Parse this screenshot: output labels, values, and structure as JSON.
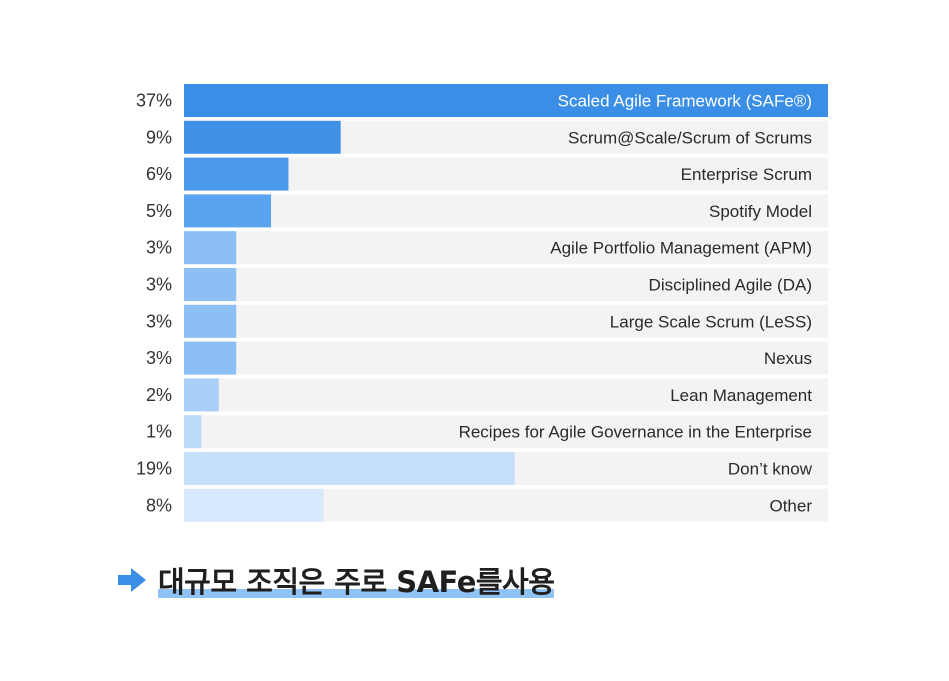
{
  "chart_data": {
    "type": "bar",
    "orientation": "horizontal",
    "categories": [
      "Scaled Agile Framework (SAFe®)",
      "Scrum@Scale/Scrum of Scrums",
      "Enterprise Scrum",
      "Spotify Model",
      "Agile Portfolio Management (APM)",
      "Disciplined Agile (DA)",
      "Large Scale Scrum (LeSS)",
      "Nexus",
      "Lean Management",
      "Recipes for Agile Governance in the Enterprise",
      "Don’t know",
      "Other"
    ],
    "values": [
      37,
      9,
      6,
      5,
      3,
      3,
      3,
      3,
      2,
      1,
      19,
      8
    ],
    "value_labels": [
      "37%",
      "9%",
      "6%",
      "5%",
      "3%",
      "3%",
      "3%",
      "3%",
      "2%",
      "1%",
      "19%",
      "8%"
    ],
    "unit": "%",
    "xlim": [
      0,
      37
    ],
    "grid": false,
    "colors": [
      "#3a8ee6",
      "#3f92e8",
      "#4a99ec",
      "#5aa3ef",
      "#8bbff5",
      "#8bbff5",
      "#8bbff5",
      "#8bbff5",
      "#a9cff8",
      "#bbdafa",
      "#c6e0fb",
      "#d7e9fc"
    ],
    "track_color": "#f3f3f3"
  },
  "callout": {
    "text": "대규모 조직은 주로 SAFe를사용",
    "icon": "arrow-right-icon",
    "accent_color": "#3a8ee6",
    "underline_color": "#90c2f5"
  }
}
